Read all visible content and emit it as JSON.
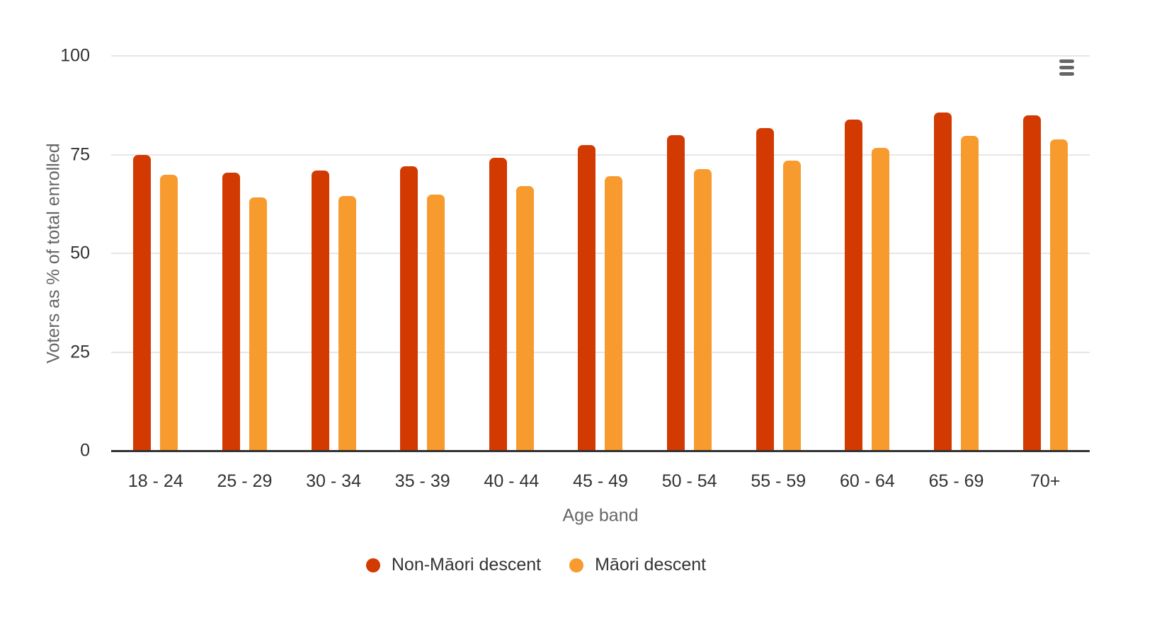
{
  "chart_data": {
    "type": "bar",
    "title": "",
    "xlabel": "Age band",
    "ylabel": "Voters as % of total enrolled",
    "categories": [
      "18 - 24",
      "25 - 29",
      "30 - 34",
      "35 - 39",
      "40 - 44",
      "45 - 49",
      "50 - 54",
      "55 - 59",
      "60 - 64",
      "65 - 69",
      "70+"
    ],
    "series": [
      {
        "name": "Non-Māori descent",
        "color": "#d23a02",
        "values": [
          74.9,
          70.4,
          70.9,
          72.1,
          74.2,
          77.5,
          79.9,
          81.7,
          83.8,
          85.7,
          84.9
        ]
      },
      {
        "name": "Māori descent",
        "color": "#f79b2e",
        "values": [
          69.9,
          64.2,
          64.6,
          64.9,
          67.0,
          69.5,
          71.3,
          73.5,
          76.7,
          79.7,
          78.8
        ]
      }
    ],
    "ylim": [
      0,
      100
    ],
    "yticks": [
      0,
      25,
      50,
      75,
      100
    ],
    "grid": true,
    "legend_position": "bottom-center"
  },
  "colors": {
    "series_non_maori": "#d23a02",
    "series_maori": "#f79b2e",
    "gridline": "#e6e6e6",
    "axis_line": "#333333",
    "tick_label": "#333333",
    "axis_title": "#666666",
    "menu_icon": "#666666",
    "background": "#ffffff"
  },
  "icons": {
    "export_menu": "hamburger-menu-icon"
  }
}
